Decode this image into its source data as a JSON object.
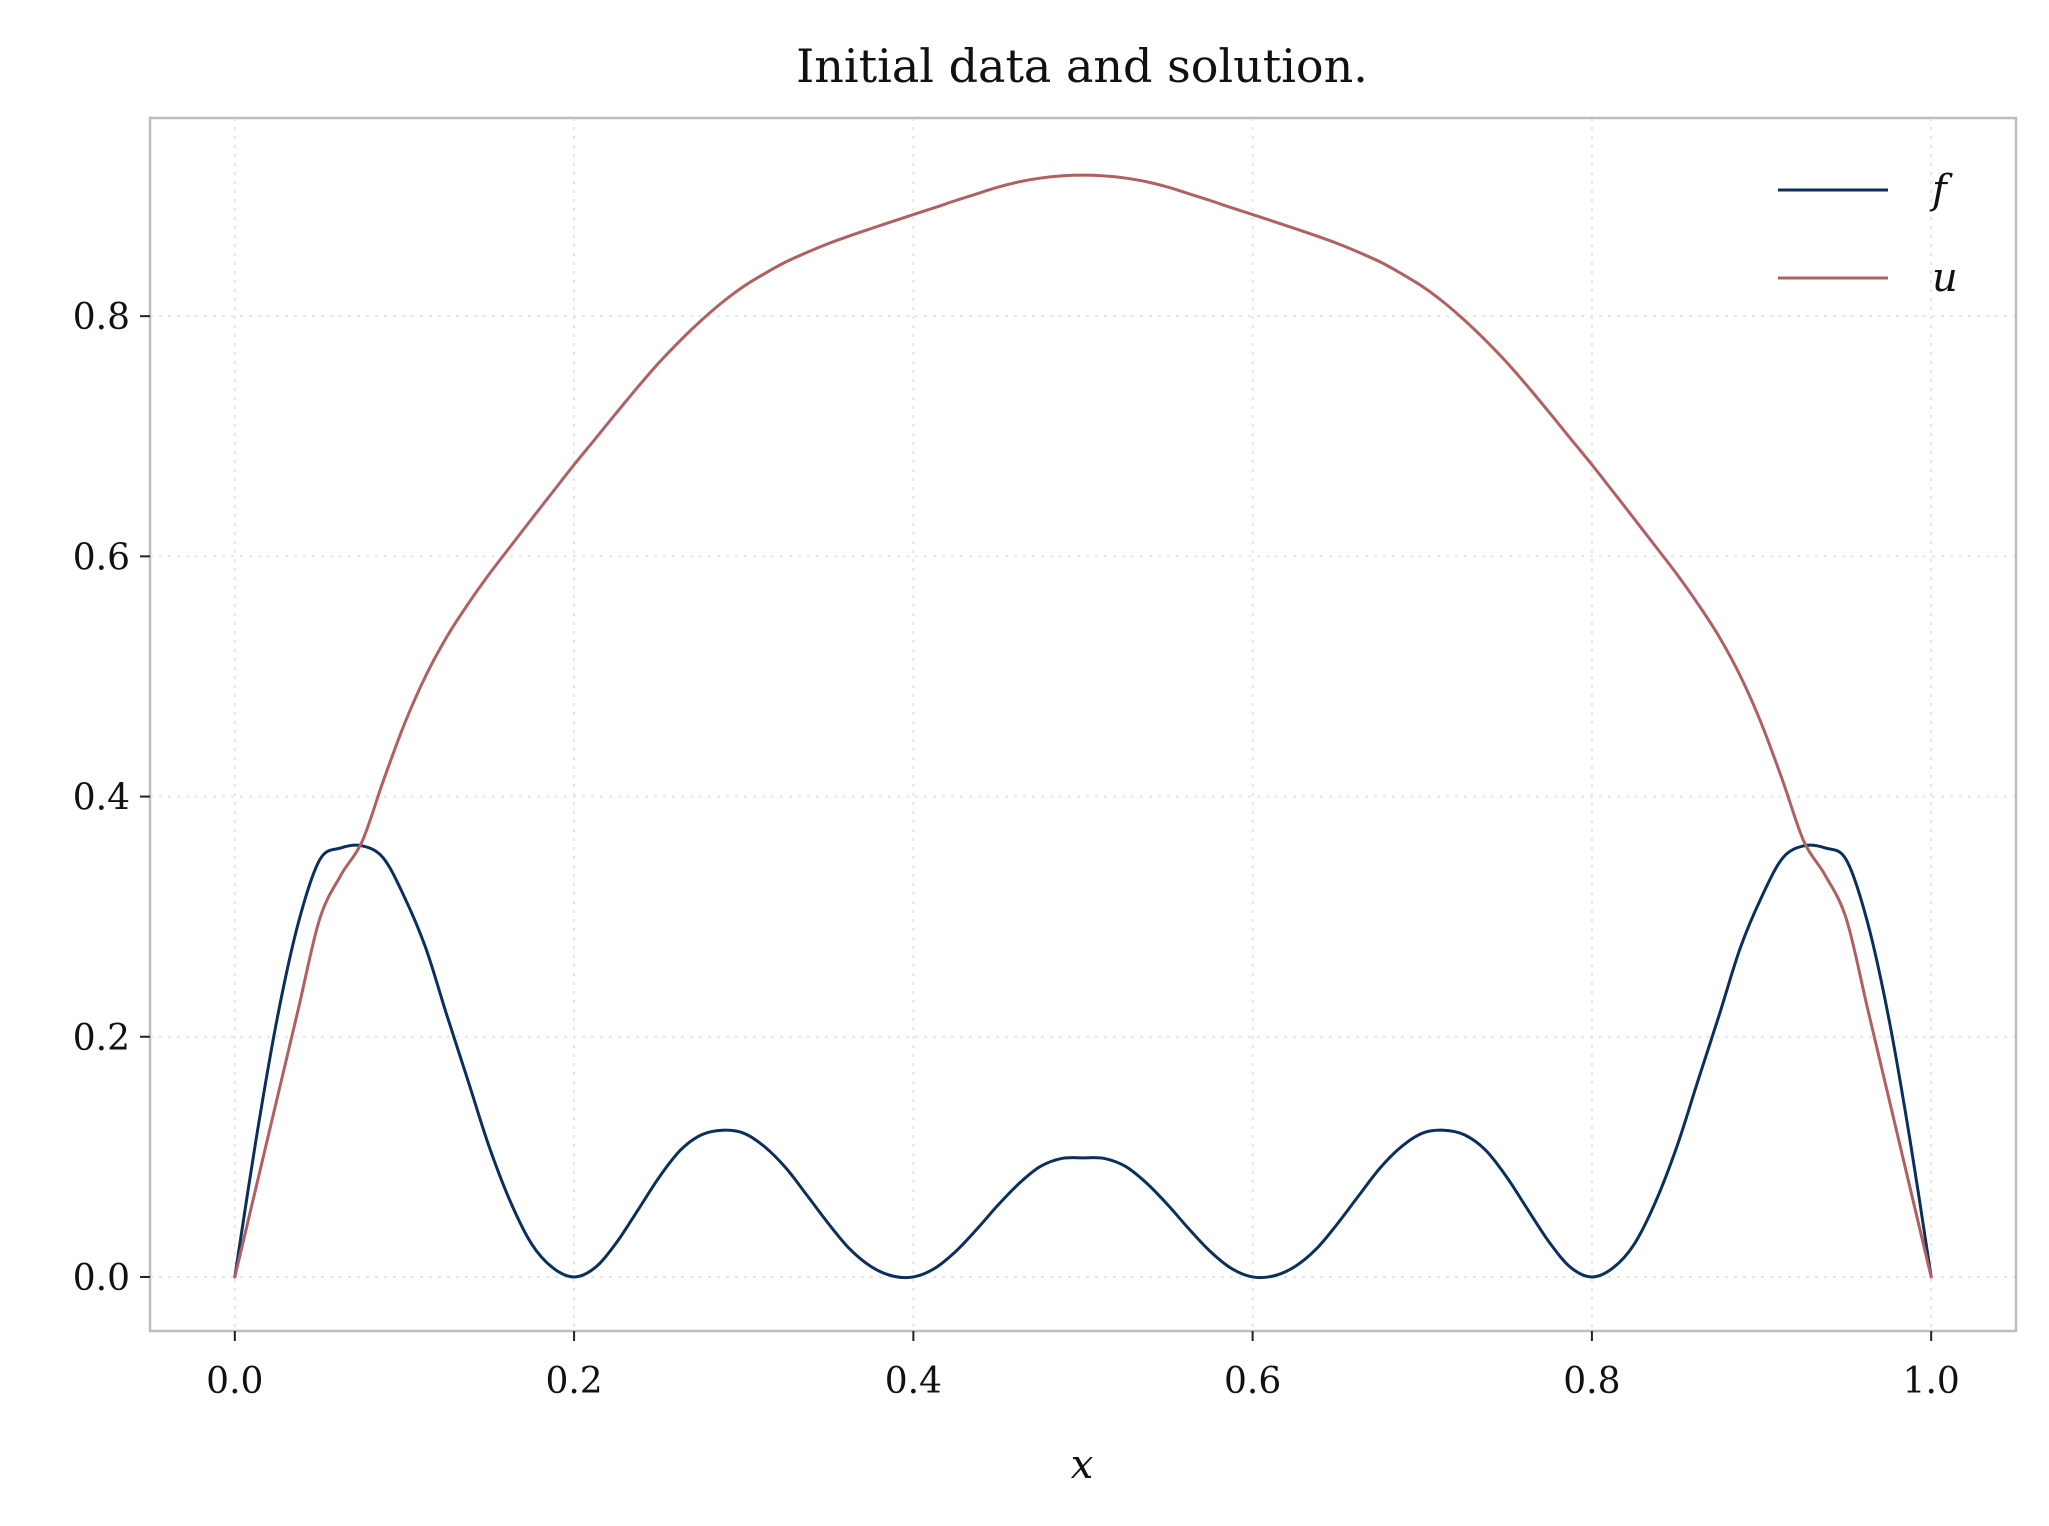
{
  "chart_data": {
    "type": "line",
    "title": "Initial data and solution.",
    "xlabel": "x",
    "ylabel": "",
    "xlim": [
      -0.05,
      1.05
    ],
    "ylim": [
      -0.045,
      0.965
    ],
    "xticks": [
      0.0,
      0.2,
      0.4,
      0.6,
      0.8,
      1.0
    ],
    "xtick_labels": [
      "0.0",
      "0.2",
      "0.4",
      "0.6",
      "0.8",
      "1.0"
    ],
    "yticks": [
      0.0,
      0.2,
      0.4,
      0.6,
      0.8
    ],
    "ytick_labels": [
      "0.0",
      "0.2",
      "0.4",
      "0.6",
      "0.8"
    ],
    "grid": true,
    "legend_position": "top-right",
    "x": [
      0.0,
      0.0125,
      0.025,
      0.0375,
      0.05,
      0.0625,
      0.075,
      0.0875,
      0.1,
      0.1125,
      0.125,
      0.1375,
      0.15,
      0.1625,
      0.175,
      0.1875,
      0.2,
      0.2125,
      0.225,
      0.2375,
      0.25,
      0.2625,
      0.275,
      0.2875,
      0.3,
      0.3125,
      0.325,
      0.3375,
      0.35,
      0.3625,
      0.375,
      0.3875,
      0.4,
      0.4125,
      0.425,
      0.4375,
      0.45,
      0.4625,
      0.475,
      0.4875,
      0.5,
      0.5125,
      0.525,
      0.5375,
      0.55,
      0.5625,
      0.575,
      0.5875,
      0.6,
      0.6125,
      0.625,
      0.6375,
      0.65,
      0.6625,
      0.675,
      0.6875,
      0.7,
      0.7125,
      0.725,
      0.7375,
      0.75,
      0.7625,
      0.775,
      0.7875,
      0.8,
      0.8125,
      0.825,
      0.8375,
      0.85,
      0.8625,
      0.875,
      0.8875,
      0.9,
      0.9125,
      0.925,
      0.9375,
      0.95,
      0.9625,
      0.975,
      0.9875,
      1.0
    ],
    "series": [
      {
        "name": "f",
        "color": "#0b2f5c",
        "values": [
          0.0,
          0.1142,
          0.2154,
          0.2951,
          0.3472,
          0.3572,
          0.359,
          0.3489,
          0.3163,
          0.2741,
          0.2179,
          0.1633,
          0.1082,
          0.0625,
          0.0274,
          0.0076,
          0.0,
          0.0079,
          0.0286,
          0.0554,
          0.0827,
          0.1053,
          0.1183,
          0.1222,
          0.1197,
          0.1082,
          0.0905,
          0.0676,
          0.0443,
          0.0233,
          0.0087,
          0.0009,
          0.0,
          0.0071,
          0.0213,
          0.0399,
          0.06,
          0.0781,
          0.0921,
          0.0987,
          0.0992,
          0.0987,
          0.0921,
          0.0781,
          0.06,
          0.0399,
          0.0213,
          0.0071,
          0.0,
          0.0009,
          0.0087,
          0.0233,
          0.0443,
          0.0676,
          0.0905,
          0.1082,
          0.1197,
          0.1222,
          0.1183,
          0.1053,
          0.0827,
          0.0554,
          0.0286,
          0.0079,
          0.0,
          0.0076,
          0.0274,
          0.0625,
          0.1082,
          0.1633,
          0.2179,
          0.2741,
          0.3163,
          0.3489,
          0.359,
          0.3572,
          0.3472,
          0.2951,
          0.2154,
          0.1142,
          0.0
        ]
      },
      {
        "name": "u",
        "color": "#b06060",
        "values": [
          0.0,
          0.0745,
          0.149,
          0.2235,
          0.298,
          0.3345,
          0.3625,
          0.413,
          0.4605,
          0.5004,
          0.5331,
          0.5604,
          0.5853,
          0.6083,
          0.6312,
          0.6538,
          0.6763,
          0.6979,
          0.7196,
          0.7409,
          0.7612,
          0.7796,
          0.7965,
          0.8117,
          0.8248,
          0.8356,
          0.8453,
          0.8532,
          0.8605,
          0.8669,
          0.8729,
          0.8788,
          0.8846,
          0.8903,
          0.8963,
          0.9019,
          0.9075,
          0.9119,
          0.915,
          0.9168,
          0.9174,
          0.9168,
          0.915,
          0.9119,
          0.9075,
          0.9019,
          0.8963,
          0.8903,
          0.8846,
          0.8788,
          0.8729,
          0.8669,
          0.8605,
          0.8532,
          0.8453,
          0.8356,
          0.8248,
          0.8117,
          0.7965,
          0.7796,
          0.7612,
          0.7409,
          0.7196,
          0.6979,
          0.6763,
          0.6538,
          0.6312,
          0.6083,
          0.5853,
          0.5604,
          0.5331,
          0.5004,
          0.4605,
          0.413,
          0.3625,
          0.3345,
          0.298,
          0.2235,
          0.149,
          0.0745,
          0.0
        ]
      }
    ]
  }
}
